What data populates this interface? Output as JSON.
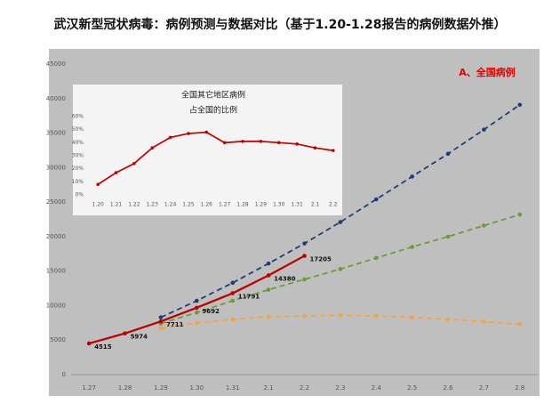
{
  "chart_data": [
    {
      "type": "line",
      "title": "武汉新型冠状病毒：病例预测与数据对比（基于1.20-1.28报告的病例数据外推）",
      "annotation": "A、全国病例",
      "categories": [
        "1.27",
        "1.28",
        "1.29",
        "1.30",
        "1.31",
        "2.1",
        "2.2",
        "2.3",
        "2.4",
        "2.5",
        "2.6",
        "2.7",
        "2.8"
      ],
      "ylim": [
        0,
        45000
      ],
      "yticks": [
        0,
        5000,
        10000,
        15000,
        20000,
        25000,
        30000,
        35000,
        40000,
        45000
      ],
      "grid": false,
      "series": [
        {
          "color": "#1f3a7a",
          "style": "dashed",
          "values": [
            null,
            null,
            8300,
            10700,
            13300,
            16100,
            19000,
            22100,
            25400,
            28700,
            32000,
            35500,
            39100
          ]
        },
        {
          "color": "#6a9a3a",
          "style": "dashed",
          "values": [
            null,
            null,
            7400,
            9000,
            10700,
            12300,
            13800,
            15300,
            16900,
            18500,
            20000,
            21600,
            23200
          ]
        },
        {
          "color": "#f4a340",
          "style": "dashed",
          "values": [
            null,
            null,
            6700,
            7500,
            8000,
            8400,
            8500,
            8600,
            8500,
            8300,
            8000,
            7700,
            7300
          ]
        },
        {
          "color": "#c00000",
          "style": "solid",
          "labels": true,
          "values": [
            4515,
            5974,
            7711,
            9692,
            11791,
            14380,
            17205,
            null,
            null,
            null,
            null,
            null,
            null
          ]
        }
      ]
    },
    {
      "type": "line",
      "title": "全国其它地区病例",
      "subtitle": "占全国的比例",
      "categories": [
        "1.20",
        "1.21",
        "1.22",
        "1.23",
        "1.24",
        "1.25",
        "1.26",
        "1.27",
        "1.28",
        "1.29",
        "1.30",
        "1.31",
        "2.1",
        "2.2"
      ],
      "ylim": [
        0,
        60
      ],
      "yticks": [
        {
          "value": 0,
          "label": "0%"
        },
        {
          "value": 10,
          "label": "10%"
        },
        {
          "value": 20,
          "label": "20%"
        },
        {
          "value": 30,
          "label": "30%"
        },
        {
          "value": 40,
          "label": "40%"
        },
        {
          "value": 50,
          "label": "50%"
        },
        {
          "value": 60,
          "label": "60%"
        }
      ],
      "grid": false,
      "series": [
        {
          "color": "#c00000",
          "style": "solid",
          "values": [
            8,
            17,
            24,
            36,
            44,
            47,
            48,
            40,
            41,
            41,
            40,
            39,
            36,
            34
          ]
        }
      ]
    }
  ]
}
